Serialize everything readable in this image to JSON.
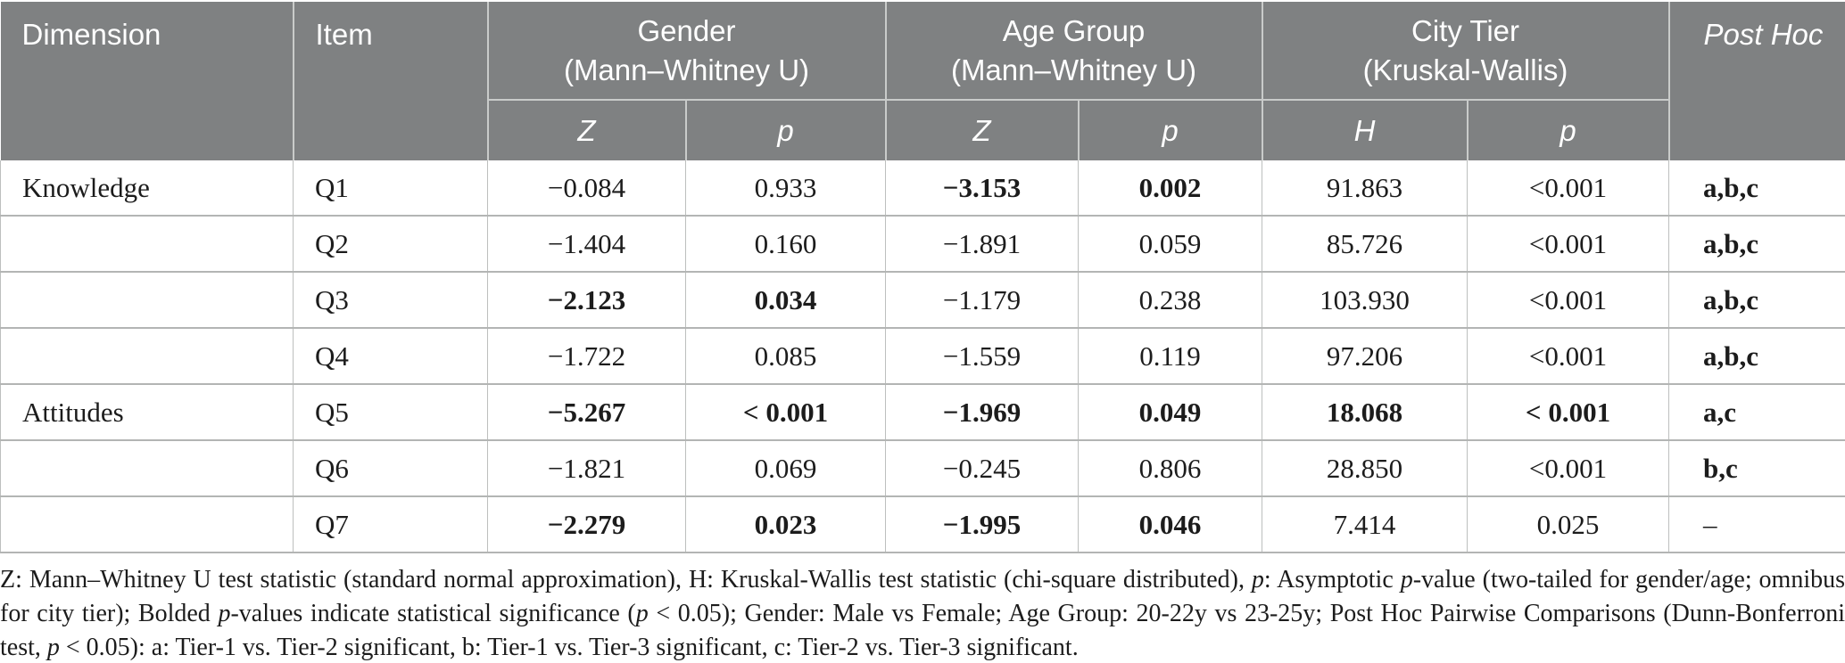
{
  "colors": {
    "header_bg": "#7f8182",
    "header_divider": "#c9cbca",
    "row_line": "#b3b5b4",
    "col_line": "#bdbfbe",
    "text": "#1c1c1c"
  },
  "table": {
    "header": {
      "dimension": "Dimension",
      "item": "Item",
      "groups": [
        {
          "name": "Gender",
          "method": "(Mann–Whitney U)",
          "sub": [
            "Z",
            "p"
          ]
        },
        {
          "name": "Age Group",
          "method": "(Mann–Whitney U)",
          "sub": [
            "Z",
            "p"
          ]
        },
        {
          "name": "City Tier",
          "method": "(Kruskal-Wallis)",
          "sub": [
            "H",
            "p"
          ]
        }
      ],
      "post_hoc": "Post Hoc"
    },
    "rows": [
      {
        "dimension": "Knowledge",
        "item": "Q1",
        "gender_z": {
          "text": "−0.084",
          "bold": false
        },
        "gender_p": {
          "text": "0.933",
          "bold": false
        },
        "age_z": {
          "text": "−3.153",
          "bold": true
        },
        "age_p": {
          "text": "0.002",
          "bold": true
        },
        "city_h": {
          "text": "91.863",
          "bold": false
        },
        "city_p": {
          "text": "<0.001",
          "bold": false
        },
        "post_hoc": {
          "text": "a,b,c",
          "bold": true
        }
      },
      {
        "dimension": "",
        "item": "Q2",
        "gender_z": {
          "text": "−1.404",
          "bold": false
        },
        "gender_p": {
          "text": "0.160",
          "bold": false
        },
        "age_z": {
          "text": "−1.891",
          "bold": false
        },
        "age_p": {
          "text": "0.059",
          "bold": false
        },
        "city_h": {
          "text": "85.726",
          "bold": false
        },
        "city_p": {
          "text": "<0.001",
          "bold": false
        },
        "post_hoc": {
          "text": "a,b,c",
          "bold": true
        }
      },
      {
        "dimension": "",
        "item": "Q3",
        "gender_z": {
          "text": "−2.123",
          "bold": true
        },
        "gender_p": {
          "text": "0.034",
          "bold": true
        },
        "age_z": {
          "text": "−1.179",
          "bold": false
        },
        "age_p": {
          "text": "0.238",
          "bold": false
        },
        "city_h": {
          "text": "103.930",
          "bold": false
        },
        "city_p": {
          "text": "<0.001",
          "bold": false
        },
        "post_hoc": {
          "text": "a,b,c",
          "bold": true
        }
      },
      {
        "dimension": "",
        "item": "Q4",
        "gender_z": {
          "text": "−1.722",
          "bold": false
        },
        "gender_p": {
          "text": "0.085",
          "bold": false
        },
        "age_z": {
          "text": "−1.559",
          "bold": false
        },
        "age_p": {
          "text": "0.119",
          "bold": false
        },
        "city_h": {
          "text": "97.206",
          "bold": false
        },
        "city_p": {
          "text": "<0.001",
          "bold": false
        },
        "post_hoc": {
          "text": "a,b,c",
          "bold": true
        }
      },
      {
        "dimension": "Attitudes",
        "item": "Q5",
        "gender_z": {
          "text": "−5.267",
          "bold": true
        },
        "gender_p": {
          "text": "< 0.001",
          "bold": true
        },
        "age_z": {
          "text": "−1.969",
          "bold": true
        },
        "age_p": {
          "text": "0.049",
          "bold": true
        },
        "city_h": {
          "text": "18.068",
          "bold": true
        },
        "city_p": {
          "text": "< 0.001",
          "bold": true
        },
        "post_hoc": {
          "text": "a,c",
          "bold": true
        }
      },
      {
        "dimension": "",
        "item": "Q6",
        "gender_z": {
          "text": "−1.821",
          "bold": false
        },
        "gender_p": {
          "text": "0.069",
          "bold": false
        },
        "age_z": {
          "text": "−0.245",
          "bold": false
        },
        "age_p": {
          "text": "0.806",
          "bold": false
        },
        "city_h": {
          "text": "28.850",
          "bold": false
        },
        "city_p": {
          "text": "<0.001",
          "bold": false
        },
        "post_hoc": {
          "text": "b,c",
          "bold": true
        }
      },
      {
        "dimension": "",
        "item": "Q7",
        "gender_z": {
          "text": "−2.279",
          "bold": true
        },
        "gender_p": {
          "text": "0.023",
          "bold": true
        },
        "age_z": {
          "text": "−1.995",
          "bold": true
        },
        "age_p": {
          "text": "0.046",
          "bold": true
        },
        "city_h": {
          "text": "7.414",
          "bold": false
        },
        "city_p": {
          "text": "0.025",
          "bold": false
        },
        "post_hoc": {
          "text": "–",
          "bold": false
        }
      }
    ]
  },
  "footnote": {
    "segments": [
      {
        "text": "Z: Mann–Whitney U test statistic (standard normal approximation), H: Kruskal-Wallis test statistic (chi-square distributed), ",
        "italic": false
      },
      {
        "text": "p",
        "italic": true
      },
      {
        "text": ": Asymptotic ",
        "italic": false
      },
      {
        "text": "p",
        "italic": true
      },
      {
        "text": "-value (two-tailed for gender/age; omnibus for city tier); Bolded ",
        "italic": false
      },
      {
        "text": "p",
        "italic": true
      },
      {
        "text": "-values indicate statistical significance (",
        "italic": false
      },
      {
        "text": "p",
        "italic": true
      },
      {
        "text": " < 0.05); Gender: Male vs Female; Age Group: 20-22y vs 23-25y; Post Hoc Pairwise Comparisons (Dunn-Bonferroni test, ",
        "italic": false
      },
      {
        "text": "p",
        "italic": true
      },
      {
        "text": " < 0.05): a: Tier-1 vs. Tier-2 significant, b: Tier-1 vs. Tier-3 significant, c: Tier-2 vs. Tier-3 significant.",
        "italic": false
      }
    ]
  }
}
